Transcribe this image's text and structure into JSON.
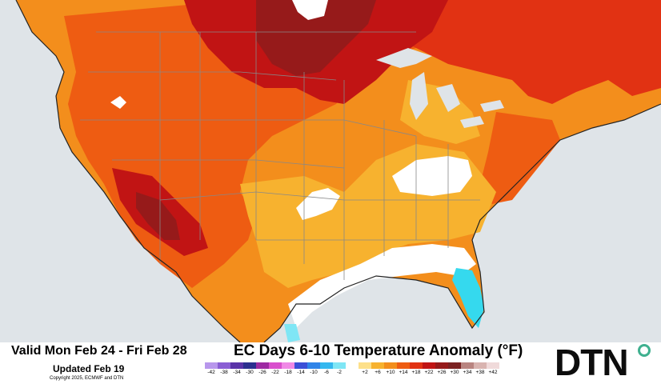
{
  "title": "EC Days 6-10 Temperature Anomaly (°F)",
  "valid_period": "Valid Mon Feb 24 - Fri Feb 28",
  "updated": "Updated Feb 19",
  "copyright": "Copyright 2025, ECMWF and DTN",
  "logo_text": "DTN",
  "colors": {
    "ocean": "#dfe4e8",
    "warm_light": "#f7b22f",
    "warm_orange": "#f38e1c",
    "warm_red_orange": "#ee5c12",
    "warm_red": "#e13213",
    "warm_dark_red": "#c11414",
    "warm_deep_red": "#961a1a",
    "near_normal": "#ffffff",
    "cool_cyan": "#35d9ee",
    "border_lines": "#888888",
    "logo_accent": "#3fb08f"
  },
  "legend": [
    {
      "label": "-42",
      "color": "#b897ec"
    },
    {
      "label": "-38",
      "color": "#8a5ed4"
    },
    {
      "label": "-34",
      "color": "#5a33a8"
    },
    {
      "label": "-30",
      "color": "#2c2f8f"
    },
    {
      "label": "-26",
      "color": "#9d2aa2"
    },
    {
      "label": "-22",
      "color": "#d94fcd"
    },
    {
      "label": "-18",
      "color": "#f089e6"
    },
    {
      "label": "-14",
      "color": "#3b4fd7"
    },
    {
      "label": "-10",
      "color": "#2f84e8"
    },
    {
      "label": "-6",
      "color": "#35b8ef"
    },
    {
      "label": "-2",
      "color": "#7fe6f5"
    },
    {
      "label": "",
      "color": "#ffffff"
    },
    {
      "label": "+2",
      "color": "#fde08a"
    },
    {
      "label": "+6",
      "color": "#f7b22f"
    },
    {
      "label": "+10",
      "color": "#f38e1c"
    },
    {
      "label": "+14",
      "color": "#ee5c12"
    },
    {
      "label": "+18",
      "color": "#e13213"
    },
    {
      "label": "+22",
      "color": "#c11414"
    },
    {
      "label": "+26",
      "color": "#961a1a"
    },
    {
      "label": "+30",
      "color": "#7b2222"
    },
    {
      "label": "+34",
      "color": "#b98480"
    },
    {
      "label": "+38",
      "color": "#d9b4b0"
    },
    {
      "label": "+42",
      "color": "#f0dada"
    }
  ],
  "legend_ticks": [
    "-42",
    "-38",
    "-34",
    "-30",
    "-26",
    "-22",
    "-18",
    "-14",
    "-10",
    "-6",
    "-2",
    "+2",
    "+6",
    "+10",
    "+14",
    "+18",
    "+22",
    "+26",
    "+30",
    "+34",
    "+38",
    "+42"
  ]
}
